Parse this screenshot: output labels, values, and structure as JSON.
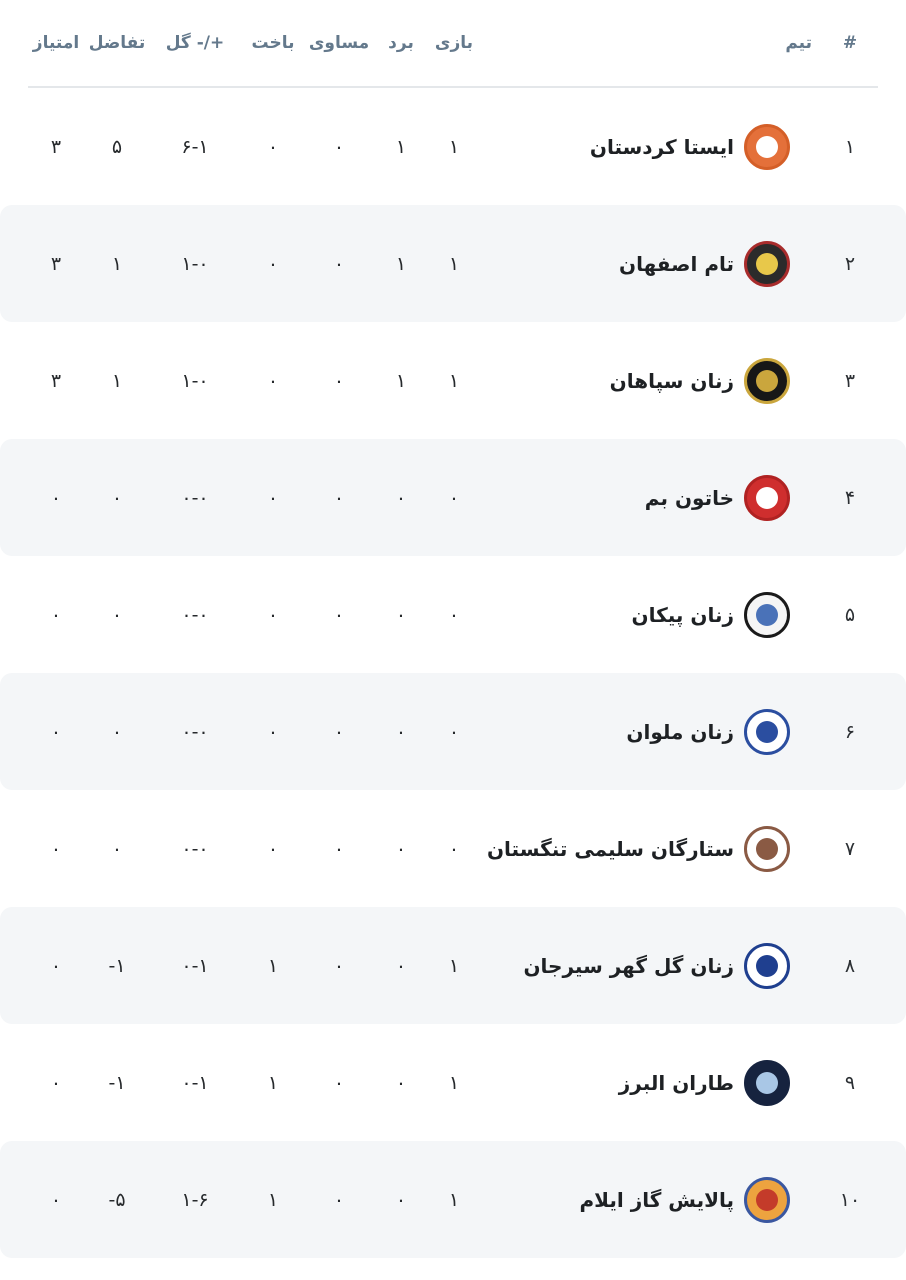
{
  "colors": {
    "header_text": "#64798c",
    "row_alt_bg": "#f4f6f8",
    "divider": "#e4e7ea",
    "text_primary": "#26292c"
  },
  "table": {
    "headers": {
      "rank": "#",
      "team": "تیم",
      "played": "بازی",
      "won": "برد",
      "drawn": "مساوی",
      "lost": "باخت",
      "goals": "گل -/+",
      "diff": "تفاضل",
      "points": "امتیاز"
    },
    "rows": [
      {
        "rank": "۱",
        "team": "ایستا کردستان",
        "played": "۱",
        "won": "۱",
        "drawn": "۰",
        "lost": "۰",
        "goals": "۶-۱",
        "diff": "۵",
        "points": "۳",
        "logo": {
          "bg": "#e4703a",
          "ring": "#d45f28",
          "inner": "#ffffff"
        }
      },
      {
        "rank": "۲",
        "team": "تام اصفهان",
        "played": "۱",
        "won": "۱",
        "drawn": "۰",
        "lost": "۰",
        "goals": "۱-۰",
        "diff": "۱",
        "points": "۳",
        "logo": {
          "bg": "#2b2b2b",
          "ring": "#a82c2c",
          "inner": "#e8c84a"
        }
      },
      {
        "rank": "۳",
        "team": "زنان سپاهان",
        "played": "۱",
        "won": "۱",
        "drawn": "۰",
        "lost": "۰",
        "goals": "۱-۰",
        "diff": "۱",
        "points": "۳",
        "logo": {
          "bg": "#171717",
          "ring": "#caa63d",
          "inner": "#caa63d"
        }
      },
      {
        "rank": "۴",
        "team": "خاتون بم",
        "played": "۰",
        "won": "۰",
        "drawn": "۰",
        "lost": "۰",
        "goals": "۰-۰",
        "diff": "۰",
        "points": "۰",
        "logo": {
          "bg": "#cf2e2e",
          "ring": "#b02222",
          "inner": "#ffffff"
        }
      },
      {
        "rank": "۵",
        "team": "زنان پیکان",
        "played": "۰",
        "won": "۰",
        "drawn": "۰",
        "lost": "۰",
        "goals": "۰-۰",
        "diff": "۰",
        "points": "۰",
        "logo": {
          "bg": "#f5f5f5",
          "ring": "#1a1a1a",
          "inner": "#4a72b8"
        }
      },
      {
        "rank": "۶",
        "team": "زنان ملوان",
        "played": "۰",
        "won": "۰",
        "drawn": "۰",
        "lost": "۰",
        "goals": "۰-۰",
        "diff": "۰",
        "points": "۰",
        "logo": {
          "bg": "#ffffff",
          "ring": "#2b4ea0",
          "inner": "#2b4ea0"
        }
      },
      {
        "rank": "۷",
        "team": "ستارگان سلیمی تنگستان",
        "played": "۰",
        "won": "۰",
        "drawn": "۰",
        "lost": "۰",
        "goals": "۰-۰",
        "diff": "۰",
        "points": "۰",
        "logo": {
          "bg": "#ffffff",
          "ring": "#8a5a44",
          "inner": "#8a5a44"
        }
      },
      {
        "rank": "۸",
        "team": "زنان گل گهر سیرجان",
        "played": "۱",
        "won": "۰",
        "drawn": "۰",
        "lost": "۱",
        "goals": "۰-۱",
        "diff": "-۱",
        "points": "۰",
        "logo": {
          "bg": "#ffffff",
          "ring": "#1f3f8f",
          "inner": "#1f3f8f"
        }
      },
      {
        "rank": "۹",
        "team": "طاران البرز",
        "played": "۱",
        "won": "۰",
        "drawn": "۰",
        "lost": "۱",
        "goals": "۰-۱",
        "diff": "-۱",
        "points": "۰",
        "logo": {
          "bg": "#16233f",
          "ring": "#16233f",
          "inner": "#a9c7e6"
        }
      },
      {
        "rank": "۱۰",
        "team": "پالایش گاز ایلام",
        "played": "۱",
        "won": "۰",
        "drawn": "۰",
        "lost": "۱",
        "goals": "۱-۶",
        "diff": "-۵",
        "points": "۰",
        "logo": {
          "bg": "#eda33f",
          "ring": "#3a57a0",
          "inner": "#c43b2a"
        }
      }
    ]
  }
}
